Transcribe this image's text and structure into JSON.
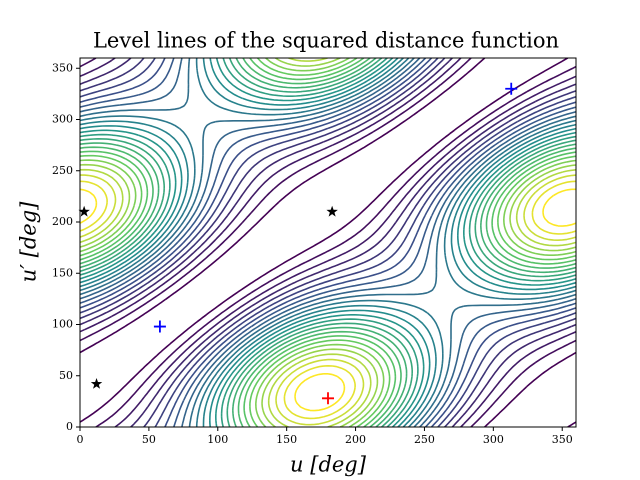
{
  "chart_data": {
    "type": "contour",
    "title": "Level lines of the squared distance function",
    "xlabel": "u [deg]",
    "ylabel": "u′ [deg]",
    "xlim": [
      0,
      360
    ],
    "ylim": [
      0,
      360
    ],
    "xticks": [
      0,
      50,
      100,
      150,
      200,
      250,
      300,
      350
    ],
    "yticks": [
      0,
      50,
      100,
      150,
      200,
      250,
      300,
      350
    ],
    "series": [
      {
        "name": "stars",
        "marker": "star",
        "color": "#000000",
        "x": [
          12,
          3,
          183
        ],
        "y": [
          42,
          210,
          210
        ]
      },
      {
        "name": "blue",
        "marker": "plus",
        "color": "#0000ff",
        "x": [
          58,
          313
        ],
        "y": [
          98,
          330
        ]
      },
      {
        "name": "red",
        "marker": "plus",
        "color": "#ff0000",
        "x": [
          180
        ],
        "y": [
          28
        ]
      }
    ]
  }
}
